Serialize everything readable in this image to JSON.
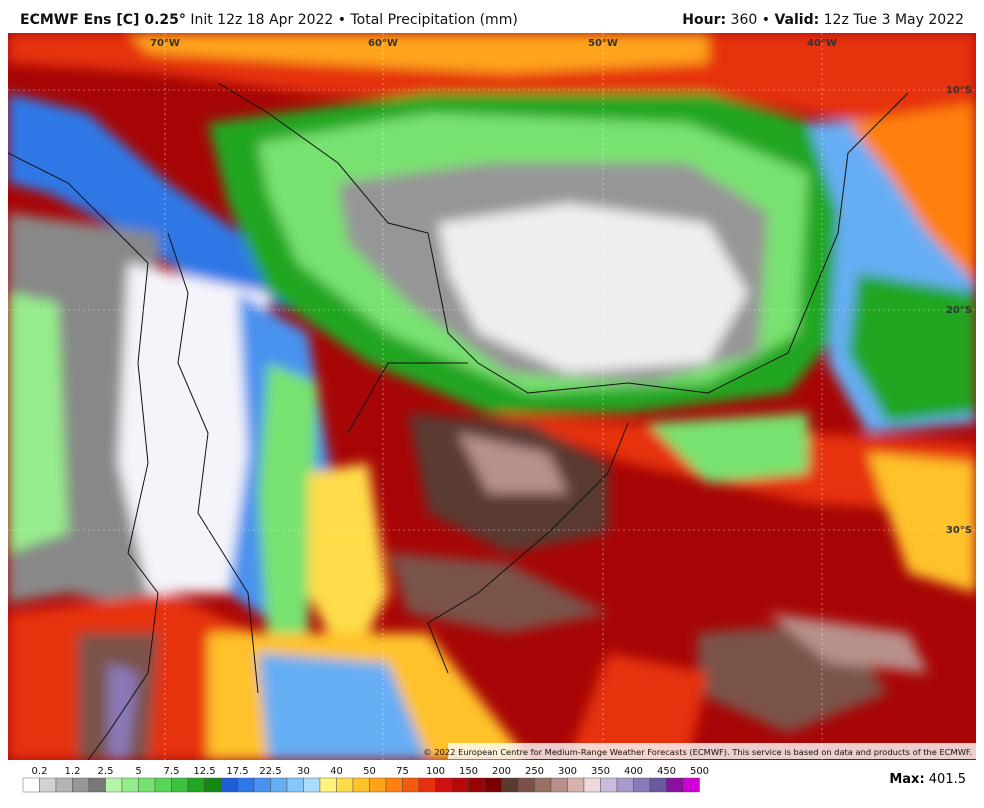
{
  "header": {
    "model": "ECMWF Ens [C] 0.25°",
    "description": "Init 12z 18 Apr 2022 • Total Precipitation (mm)",
    "hour_label": "Hour:",
    "hour": "360",
    "separator": "•",
    "valid_label": "Valid:",
    "valid": "12z Tue 3 May 2022"
  },
  "map": {
    "longitude_labels": [
      "70°W",
      "60°W",
      "50°W",
      "40°W"
    ],
    "latitude_labels": [
      "10°S",
      "20°S",
      "30°S"
    ],
    "copyright": "© 2022 European Centre for Medium-Range Weather Forecasts (ECMWF). This service is based on data and products of the ECMWF."
  },
  "colorbar": {
    "labels": [
      0.2,
      1.2,
      2.5,
      5,
      7.5,
      12.5,
      17.5,
      22.5,
      30,
      40,
      50,
      75,
      100,
      150,
      200,
      250,
      300,
      350,
      400,
      450,
      500
    ],
    "colors": [
      "#ffffff",
      "#d2d2d2",
      "#b4b4b4",
      "#969696",
      "#787878",
      "#b4f5aa",
      "#96ec8c",
      "#78e270",
      "#5ad656",
      "#3cc23c",
      "#24a624",
      "#148a14",
      "#1e5fd6",
      "#2e78e6",
      "#4a92ee",
      "#66aef4",
      "#86c6f8",
      "#aadcfb",
      "#fff27e",
      "#ffdc4a",
      "#ffc22a",
      "#ffa41a",
      "#ff8010",
      "#f65a10",
      "#e63010",
      "#d01010",
      "#b60808",
      "#980404",
      "#780000",
      "#5a3a30",
      "#7a5248",
      "#9a7062",
      "#b8908a",
      "#d6b2ac",
      "#eedada",
      "#cabadc",
      "#aa9acc",
      "#8a7ab8",
      "#6a58a0",
      "#8a10a0",
      "#d000d8"
    ]
  },
  "max": {
    "label": "Max:",
    "value": 401.5
  }
}
